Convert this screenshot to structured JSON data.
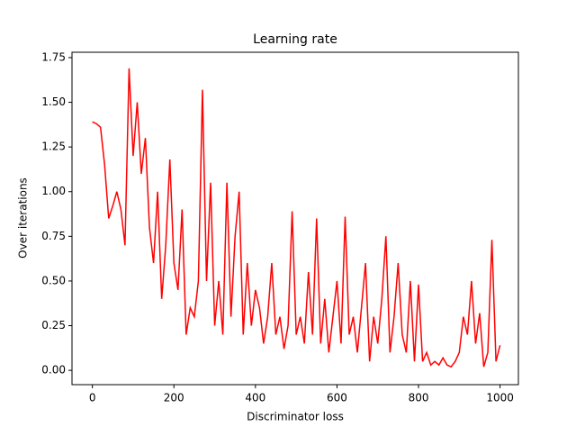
{
  "chart_data": {
    "type": "line",
    "title": "Learning rate",
    "x_label": "Discriminator loss",
    "y_label": "Over iterations",
    "x": [
      0,
      10,
      20,
      30,
      40,
      50,
      60,
      70,
      80,
      90,
      100,
      110,
      120,
      130,
      140,
      150,
      160,
      170,
      180,
      190,
      200,
      210,
      220,
      230,
      240,
      250,
      260,
      270,
      280,
      290,
      300,
      310,
      320,
      330,
      340,
      350,
      360,
      370,
      380,
      390,
      400,
      410,
      420,
      430,
      440,
      450,
      460,
      470,
      480,
      490,
      500,
      510,
      520,
      530,
      540,
      550,
      560,
      570,
      580,
      590,
      600,
      610,
      620,
      630,
      640,
      650,
      660,
      670,
      680,
      690,
      700,
      710,
      720,
      730,
      740,
      750,
      760,
      770,
      780,
      790,
      800,
      810,
      820,
      830,
      840,
      850,
      860,
      870,
      880,
      890,
      900,
      910,
      920,
      930,
      940,
      950,
      960,
      970,
      980,
      990,
      1000
    ],
    "series": [
      {
        "name": "Discriminator loss",
        "color": "#ff0000",
        "values": [
          1.39,
          1.38,
          1.36,
          1.15,
          0.85,
          0.92,
          1.0,
          0.9,
          0.7,
          1.69,
          1.2,
          1.5,
          1.1,
          1.3,
          0.8,
          0.6,
          1.0,
          0.4,
          0.7,
          1.18,
          0.6,
          0.45,
          0.9,
          0.2,
          0.35,
          0.3,
          0.5,
          1.57,
          0.5,
          1.05,
          0.25,
          0.5,
          0.2,
          1.05,
          0.3,
          0.75,
          1.0,
          0.2,
          0.6,
          0.25,
          0.45,
          0.35,
          0.15,
          0.3,
          0.6,
          0.2,
          0.3,
          0.12,
          0.25,
          0.89,
          0.2,
          0.3,
          0.15,
          0.55,
          0.2,
          0.85,
          0.15,
          0.4,
          0.1,
          0.3,
          0.5,
          0.15,
          0.86,
          0.2,
          0.3,
          0.1,
          0.35,
          0.6,
          0.05,
          0.3,
          0.15,
          0.4,
          0.75,
          0.1,
          0.3,
          0.6,
          0.2,
          0.1,
          0.5,
          0.05,
          0.48,
          0.05,
          0.1,
          0.03,
          0.05,
          0.03,
          0.07,
          0.03,
          0.02,
          0.05,
          0.1,
          0.3,
          0.2,
          0.5,
          0.15,
          0.32,
          0.02,
          0.1,
          0.73,
          0.05,
          0.14
        ]
      }
    ],
    "xlim": [
      -50,
      1045
    ],
    "ylim": [
      -0.08,
      1.78
    ],
    "xticks": [
      0,
      200,
      400,
      600,
      800,
      1000
    ],
    "yticks": [
      {
        "value": 0,
        "label": "0.00"
      },
      {
        "value": 0.25,
        "label": "0.25"
      },
      {
        "value": 0.5,
        "label": "0.50"
      },
      {
        "value": 0.75,
        "label": "0.75"
      },
      {
        "value": 1.0,
        "label": "1.00"
      },
      {
        "value": 1.25,
        "label": "1.25"
      },
      {
        "value": 1.5,
        "label": "1.50"
      },
      {
        "value": 1.75,
        "label": "1.75"
      }
    ],
    "grid": false
  }
}
